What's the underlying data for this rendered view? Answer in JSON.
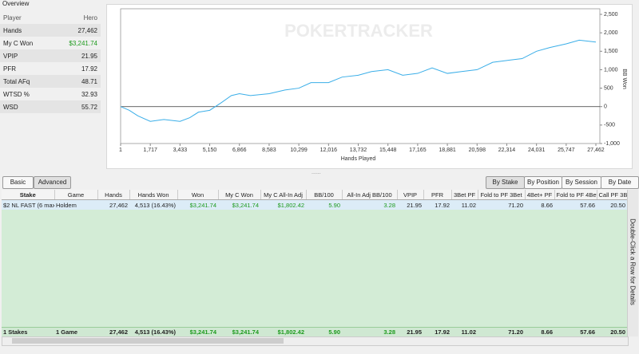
{
  "overview": {
    "title": "Overview",
    "header": [
      "Player",
      "Hero"
    ],
    "rows": [
      [
        "Hands",
        "27,462"
      ],
      [
        "My C Won",
        "$3,241.74"
      ],
      [
        "VPIP",
        "21.95"
      ],
      [
        "PFR",
        "17.92"
      ],
      [
        "Total AFq",
        "48.71"
      ],
      [
        "WTSD %",
        "32.93"
      ],
      [
        "WSD",
        "55.72"
      ]
    ]
  },
  "chart_data": {
    "type": "line",
    "watermark": "POKERTRACKER",
    "x_label": "Hands Played",
    "y_label": "BB Won",
    "color": "#3aaee8",
    "x": [
      1,
      500,
      1000,
      1717,
      2500,
      3433,
      4000,
      4500,
      5150,
      5800,
      6400,
      6866,
      7500,
      8583,
      9500,
      10299,
      11000,
      12016,
      12800,
      13732,
      14500,
      15448,
      16300,
      17165,
      18000,
      18881,
      19700,
      20598,
      21500,
      22314,
      23200,
      24031,
      24800,
      25747,
      26500,
      27462
    ],
    "series": [
      {
        "name": "BB Won",
        "values": [
          0,
          -100,
          -250,
          -400,
          -350,
          -400,
          -300,
          -150,
          -100,
          100,
          300,
          350,
          300,
          350,
          450,
          500,
          650,
          650,
          800,
          850,
          950,
          1000,
          850,
          900,
          1050,
          900,
          950,
          1000,
          1200,
          1250,
          1300,
          1500,
          1600,
          1700,
          1800,
          1750
        ]
      }
    ],
    "xlim": [
      1,
      27462
    ],
    "xticks": [
      1,
      {
        "value": 1717,
        "label": "1,717"
      },
      {
        "value": 3433,
        "label": "3,433"
      },
      {
        "value": 5150,
        "label": "5,150"
      },
      {
        "value": 6866,
        "label": "6,866"
      },
      {
        "value": 8583,
        "label": "8,583"
      },
      {
        "value": 10299,
        "label": "10,299"
      },
      {
        "value": 12016,
        "label": "12,016"
      },
      {
        "value": 13732,
        "label": "13,732"
      },
      {
        "value": 15448,
        "label": "15,448"
      },
      {
        "value": 17165,
        "label": "17,165"
      },
      {
        "value": 18881,
        "label": "18,881"
      },
      {
        "value": 20598,
        "label": "20,598"
      },
      {
        "value": 22314,
        "label": "22,314"
      },
      {
        "value": 24031,
        "label": "24,031"
      },
      {
        "value": 25747,
        "label": "25,747"
      },
      {
        "value": 27462,
        "label": "27,462"
      }
    ],
    "ylim": [
      -1000,
      2500
    ],
    "yticks": [
      {
        "value": 2500,
        "label": "2,500"
      },
      {
        "value": 2000,
        "label": "2,000"
      },
      {
        "value": 1500,
        "label": "1,500"
      },
      {
        "value": 1000,
        "label": "1,000"
      },
      500,
      0,
      -500,
      {
        "value": -1000,
        "label": "-1,000"
      }
    ]
  },
  "tabs": [
    "Basic",
    "Advanced"
  ],
  "view_buttons": [
    "By Stake",
    "By Position",
    "By Session",
    "By Date"
  ],
  "table": {
    "columns": [
      "Stake",
      "Game",
      "Hands",
      "Hands Won",
      "Won",
      "My C Won",
      "My C All-In Adj",
      "BB/100",
      "All-In Adj BB/100",
      "VPIP",
      "PFR",
      "3Bet PF",
      "Fold to PF 3Bet",
      "4Bet+ PF",
      "Fold to PF 4Bet",
      "Call PF 3Bet"
    ],
    "rows": [
      [
        "$2 NL FAST (6 max)",
        "Holdem",
        "27,462",
        "4,513 (16.43%)",
        "$3,241.74",
        "$3,241.74",
        "$1,802.42",
        "5.90",
        "3.28",
        "21.95",
        "17.92",
        "11.02",
        "71.20",
        "8.66",
        "57.66",
        "20.50"
      ]
    ],
    "totals": [
      "1 Stakes",
      "1 Game",
      "27,462",
      "4,513 (16.43%)",
      "$3,241.74",
      "$3,241.74",
      "$1,802.42",
      "5.90",
      "3.28",
      "21.95",
      "17.92",
      "11.02",
      "71.20",
      "8.66",
      "57.66",
      "20.50"
    ]
  },
  "side_note": "Double-Click a Row for Details"
}
